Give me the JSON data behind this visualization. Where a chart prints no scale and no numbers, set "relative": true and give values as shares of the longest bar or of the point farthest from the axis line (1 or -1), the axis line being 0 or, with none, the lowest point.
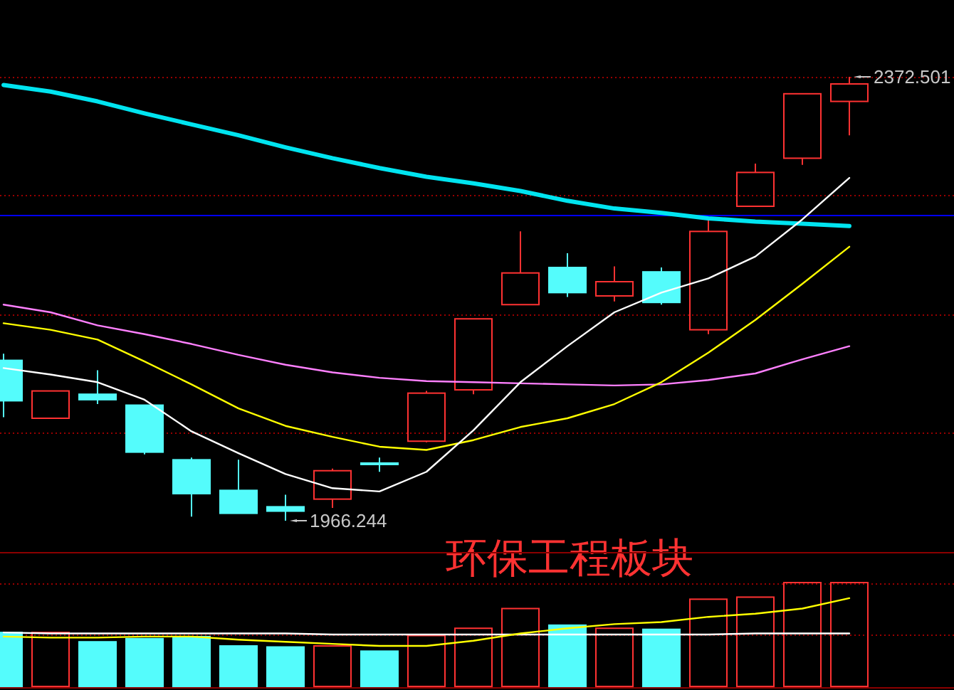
{
  "chart_data": [
    {
      "type": "candlestick",
      "title": "环保工程板块",
      "categories": [
        null,
        null,
        null,
        null,
        null,
        null,
        null,
        null,
        null,
        null,
        null,
        null,
        null,
        null,
        null,
        null,
        null,
        null,
        null
      ],
      "ohlc": [
        [
          2113,
          2119,
          2061,
          2076
        ],
        [
          2060,
          2085,
          2060,
          2085
        ],
        [
          2082,
          2104,
          2073,
          2077
        ],
        [
          2072,
          2072,
          2027,
          2029
        ],
        [
          2022,
          2024,
          1970,
          1991
        ],
        [
          1994,
          2022,
          1973,
          1973
        ],
        [
          1979,
          1990,
          1966.244,
          1975
        ],
        [
          1986,
          2014,
          1978,
          2012
        ],
        [
          2019,
          2024,
          2011,
          2018
        ],
        [
          2039,
          2085,
          2038,
          2083
        ],
        [
          2086,
          2151,
          2082,
          2151
        ],
        [
          2164,
          2231,
          2164,
          2193
        ],
        [
          2198,
          2211,
          2171,
          2175
        ],
        [
          2172,
          2199,
          2167,
          2185
        ],
        [
          2194,
          2198,
          2164,
          2166
        ],
        [
          2141,
          2242,
          2137,
          2231
        ],
        [
          2254,
          2293,
          2254,
          2285
        ],
        [
          2298,
          2357,
          2292,
          2357
        ],
        [
          2350,
          2372.501,
          2319,
          2366
        ]
      ],
      "colors": [
        "#54fcfc",
        "#ff3232",
        "#54fcfc",
        "#54fcfc",
        "#54fcfc",
        "#54fcfc",
        "#54fcfc",
        "#ff3232",
        "#54fcfc",
        "#ff3232",
        "#ff3232",
        "#ff3232",
        "#54fcfc",
        "#ff3232",
        "#54fcfc",
        "#ff3232",
        "#ff3232",
        "#ff3232",
        "#ff3232"
      ],
      "series": [
        {
          "type": "line",
          "color": "#00e4f0",
          "values": [
            2365,
            2359,
            2350,
            2339,
            2329,
            2319,
            2308,
            2298,
            2289,
            2281,
            2275,
            2268,
            2259,
            2252,
            2248,
            2243,
            2240,
            2238,
            2236
          ]
        },
        {
          "type": "line",
          "color": "#ff80ff",
          "values": [
            2164,
            2157,
            2145,
            2137,
            2128,
            2118,
            2109,
            2102,
            2097,
            2094,
            2093,
            2092,
            2091,
            2090,
            2091,
            2095,
            2101,
            2114,
            2126
          ]
        },
        {
          "type": "line",
          "color": "#ffff00",
          "values": [
            2147,
            2141,
            2132,
            2112,
            2091,
            2069,
            2053,
            2043,
            2034,
            2031,
            2040,
            2052,
            2060,
            2073,
            2093,
            2120,
            2150,
            2183,
            2217
          ]
        },
        {
          "type": "line",
          "color": "#ffffff",
          "values": [
            2106,
            2100,
            2093,
            2077,
            2048,
            2028,
            2009,
            1996,
            1993,
            2011,
            2049,
            2093,
            2126,
            2157,
            2175,
            2188,
            2208,
            2242,
            2280
          ]
        }
      ],
      "annotations": [
        "2372.501",
        "1966.244"
      ],
      "ref_lines": [
        {
          "axis": "y",
          "value": 2246,
          "color": "#0000ff"
        },
        {
          "axis": "y",
          "value": 2372.5,
          "color": "#990000",
          "line_style": "dotted"
        },
        {
          "axis": "y",
          "value": 2264,
          "color": "#990000",
          "line_style": "dotted"
        },
        {
          "axis": "y",
          "value": 2155,
          "color": "#990000",
          "line_style": "dotted"
        },
        {
          "axis": "y",
          "value": 2047,
          "color": "#990000",
          "line_style": "dotted"
        }
      ]
    },
    {
      "type": "bar",
      "relative": true,
      "categories": [
        null,
        null,
        null,
        null,
        null,
        null,
        null,
        null,
        null,
        null,
        null,
        null,
        null,
        null,
        null,
        null,
        null,
        null,
        null
      ],
      "series": [
        {
          "type": "bar",
          "colors": [
            "#54fcfc",
            "#ff3232",
            "#54fcfc",
            "#54fcfc",
            "#54fcfc",
            "#54fcfc",
            "#54fcfc",
            "#ff3232",
            "#54fcfc",
            "#ff3232",
            "#ff3232",
            "#ff3232",
            "#54fcfc",
            "#ff3232",
            "#54fcfc",
            "#ff3232",
            "#ff3232",
            "#ff3232",
            "#ff3232"
          ],
          "values": [
            0.52,
            0.52,
            0.43,
            0.46,
            0.48,
            0.39,
            0.38,
            0.39,
            0.34,
            0.49,
            0.56,
            0.75,
            0.59,
            0.56,
            0.55,
            0.84,
            0.86,
            1,
            1
          ]
        },
        {
          "type": "line",
          "color": "#ffffff",
          "values": [
            0.52,
            0.51,
            0.51,
            0.51,
            0.51,
            0.51,
            0.51,
            0.5,
            0.5,
            0.5,
            0.5,
            0.5,
            0.5,
            0.5,
            0.5,
            0.5,
            0.51,
            0.51,
            0.51
          ]
        },
        {
          "type": "line",
          "color": "#ffff00",
          "values": [
            0.48,
            0.47,
            0.47,
            0.48,
            0.48,
            0.45,
            0.43,
            0.41,
            0.39,
            0.39,
            0.44,
            0.51,
            0.56,
            0.6,
            0.62,
            0.67,
            0.7,
            0.75,
            0.85
          ]
        }
      ],
      "ref_lines": [
        {
          "axis": "y",
          "value": 1,
          "color": "#990000",
          "line_style": "dotted"
        },
        {
          "axis": "y",
          "value": 0.5,
          "color": "#990000",
          "line_style": "dotted"
        }
      ]
    }
  ]
}
